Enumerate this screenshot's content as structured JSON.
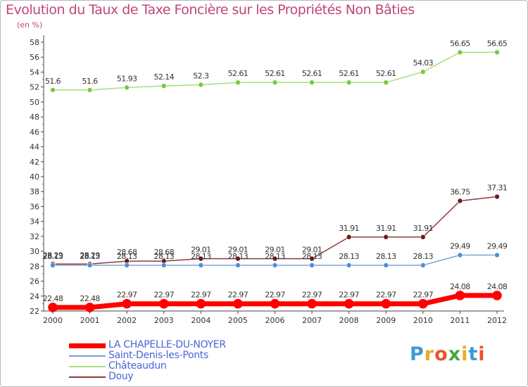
{
  "chart_data": {
    "type": "line",
    "title": "Evolution du Taux de Taxe Foncière sur les Propriétés Non Bâties",
    "ylabel": "(en %)",
    "xlabel": "",
    "x": [
      "2000",
      "2001",
      "2002",
      "2003",
      "2004",
      "2005",
      "2006",
      "2007",
      "2008",
      "2009",
      "2010",
      "2011",
      "2012"
    ],
    "ylim": [
      22,
      58
    ],
    "yticks": [
      22,
      24,
      26,
      28,
      30,
      32,
      34,
      36,
      38,
      40,
      42,
      44,
      46,
      48,
      50,
      52,
      54,
      56,
      58
    ],
    "grid": false,
    "legend_position": "bottom-left",
    "series": [
      {
        "name": "LA CHAPELLE-DU-NOYER",
        "color": "#ff0000",
        "line_width": 7,
        "marker_color": "#ff0000",
        "values": [
          22.48,
          22.48,
          22.97,
          22.97,
          22.97,
          22.97,
          22.97,
          22.97,
          22.97,
          22.97,
          22.97,
          24.08,
          24.08
        ],
        "labels": [
          "22.48",
          "22.48",
          "22.97",
          "22.97",
          "22.97",
          "22.97",
          "22.97",
          "22.97",
          "22.97",
          "22.97",
          "22.97",
          "24.08",
          "24.08"
        ]
      },
      {
        "name": "Saint-Denis-les-Ponts",
        "color": "#7ba3d1",
        "line_width": 1.5,
        "marker_color": "#4a90d9",
        "values": [
          28.13,
          28.13,
          28.13,
          28.13,
          28.13,
          28.13,
          28.13,
          28.13,
          28.13,
          28.13,
          28.13,
          29.49,
          29.49
        ],
        "labels": [
          "28.13",
          "28.13",
          "28.13",
          "28.13",
          "28.13",
          "28.13",
          "28.13",
          "28.13",
          "28.13",
          "28.13",
          "28.13",
          "29.49",
          "29.49"
        ]
      },
      {
        "name": "Châteaudun",
        "color": "#a6e07a",
        "line_width": 1.5,
        "marker_color": "#79c944",
        "values": [
          51.6,
          51.6,
          51.93,
          52.14,
          52.3,
          52.61,
          52.61,
          52.61,
          52.61,
          52.61,
          54.03,
          56.65,
          56.65
        ],
        "labels": [
          "51.6",
          "51.6",
          "51.93",
          "52.14",
          "52.3",
          "52.61",
          "52.61",
          "52.61",
          "52.61",
          "52.61",
          "54.03",
          "56.65",
          "56.65"
        ]
      },
      {
        "name": "Douy",
        "color": "#8a3a3a",
        "line_width": 1.5,
        "marker_color": "#6e1b1b",
        "values": [
          28.29,
          28.29,
          28.68,
          28.68,
          29.01,
          29.01,
          29.01,
          29.01,
          31.91,
          31.91,
          31.91,
          36.75,
          37.31
        ],
        "labels": [
          "28.29",
          "28.29",
          "28.68",
          "28.68",
          "29.01",
          "29.01",
          "29.01",
          "29.01",
          "31.91",
          "31.91",
          "31.91",
          "36.75",
          "37.31"
        ]
      }
    ]
  },
  "brand": {
    "letters": [
      "P",
      "r",
      "o",
      "x",
      "i",
      "t",
      "i"
    ],
    "colors": [
      "#3d9ad1",
      "#f0a62a",
      "#e9532d",
      "#45a83a",
      "#f0a62a",
      "#3d9ad1",
      "#e9532d"
    ]
  }
}
